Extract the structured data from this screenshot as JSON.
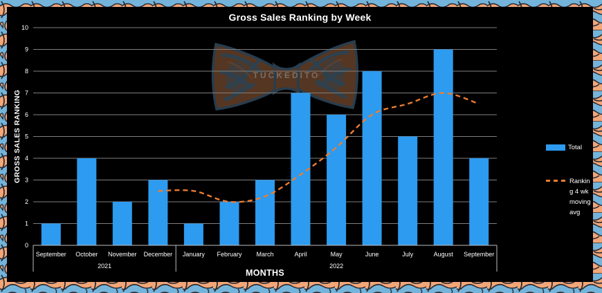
{
  "watermark": {
    "text": "TUCKEDITO"
  },
  "legend": {
    "total_label": "Total",
    "moving_avg_lines": [
      "Rankin",
      "g 4 wk",
      "moving",
      "avg"
    ]
  },
  "chart_data": {
    "type": "bar",
    "title": "Gross Sales Ranking by Week",
    "xlabel": "MONTHS",
    "ylabel": "GROSS SALES RANKING",
    "categories": [
      "September",
      "October",
      "November",
      "December",
      "January",
      "February",
      "March",
      "April",
      "May",
      "June",
      "July",
      "August",
      "September"
    ],
    "category_groups": [
      {
        "label": "2021",
        "from": 0,
        "to": 3
      },
      {
        "label": "2022",
        "from": 4,
        "to": 12
      }
    ],
    "series": [
      {
        "name": "Total",
        "type": "bar",
        "color": "#2D9BEF",
        "values": [
          1,
          4,
          2,
          3,
          1,
          2,
          3,
          7,
          6,
          8,
          5,
          9,
          4
        ]
      },
      {
        "name": "Ranking 4 wk moving avg",
        "type": "line",
        "dashed": true,
        "color": "#ED7D31",
        "values": [
          null,
          null,
          null,
          2.5,
          2.5,
          2.0,
          2.25,
          3.25,
          4.5,
          6.0,
          6.5,
          7.0,
          6.5
        ]
      }
    ],
    "ylim": [
      0,
      10
    ],
    "ytick_step": 1,
    "grid": true,
    "legend_position": "right",
    "colors": {
      "grid": "#7F7F7F",
      "axis": "#BFBFBF",
      "text": "#FFFFFF",
      "background": "#000000"
    }
  },
  "frame": {
    "border_colors": {
      "blue": "#74B4DB",
      "peach": "#F3A677",
      "dark": "#2B2B33"
    }
  }
}
